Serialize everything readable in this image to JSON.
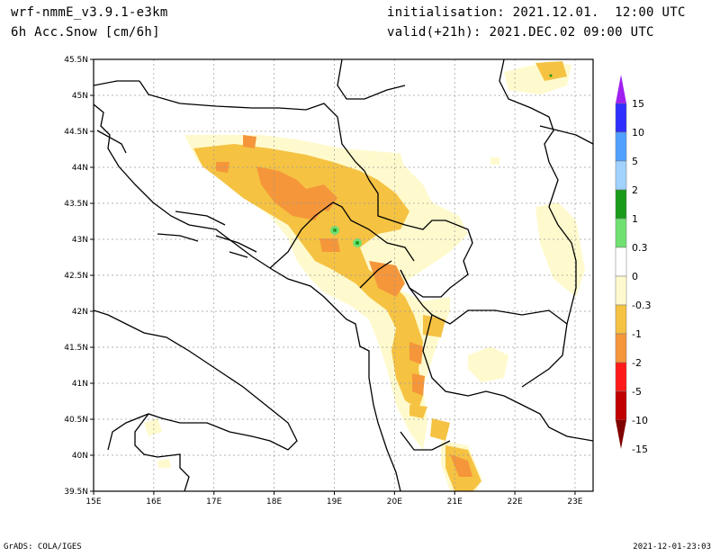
{
  "header": {
    "model": "wrf-nmmE_v3.9.1-e3km",
    "variable": "6h Acc.Snow [cm/6h]",
    "initialisation": "initialisation: 2021.12.01.  12:00 UTC",
    "valid": "valid(+21h): 2021.DEC.02 09:00 UTC"
  },
  "footer": {
    "left": "GrADS: COLA/IGES",
    "right": "2021-12-01-23:03"
  },
  "map": {
    "lon_range": [
      15,
      23.3
    ],
    "lat_range": [
      39.5,
      45.5
    ],
    "lon_ticks": [
      "15E",
      "16E",
      "17E",
      "18E",
      "19E",
      "20E",
      "21E",
      "22E",
      "23E"
    ],
    "lat_ticks": [
      "39.5N",
      "40N",
      "40.5N",
      "41N",
      "41.5N",
      "42N",
      "42.5N",
      "43N",
      "43.5N",
      "44N",
      "44.5N",
      "45N",
      "45.5N"
    ],
    "grid": true
  },
  "colorbar": {
    "labels": [
      "15",
      "10",
      "5",
      "2",
      "1",
      "0.3",
      "0",
      "-0.3",
      "-1",
      "-2",
      "-5",
      "-10",
      "-15"
    ],
    "colors": [
      "#a020f0",
      "#2f2fff",
      "#4fa0ff",
      "#a0d2ff",
      "#1a9c1a",
      "#70e070",
      "#ffffff",
      "#fffacd",
      "#f5c242",
      "#f5963a",
      "#ff1a1a",
      "#c00000",
      "#800000"
    ]
  }
}
